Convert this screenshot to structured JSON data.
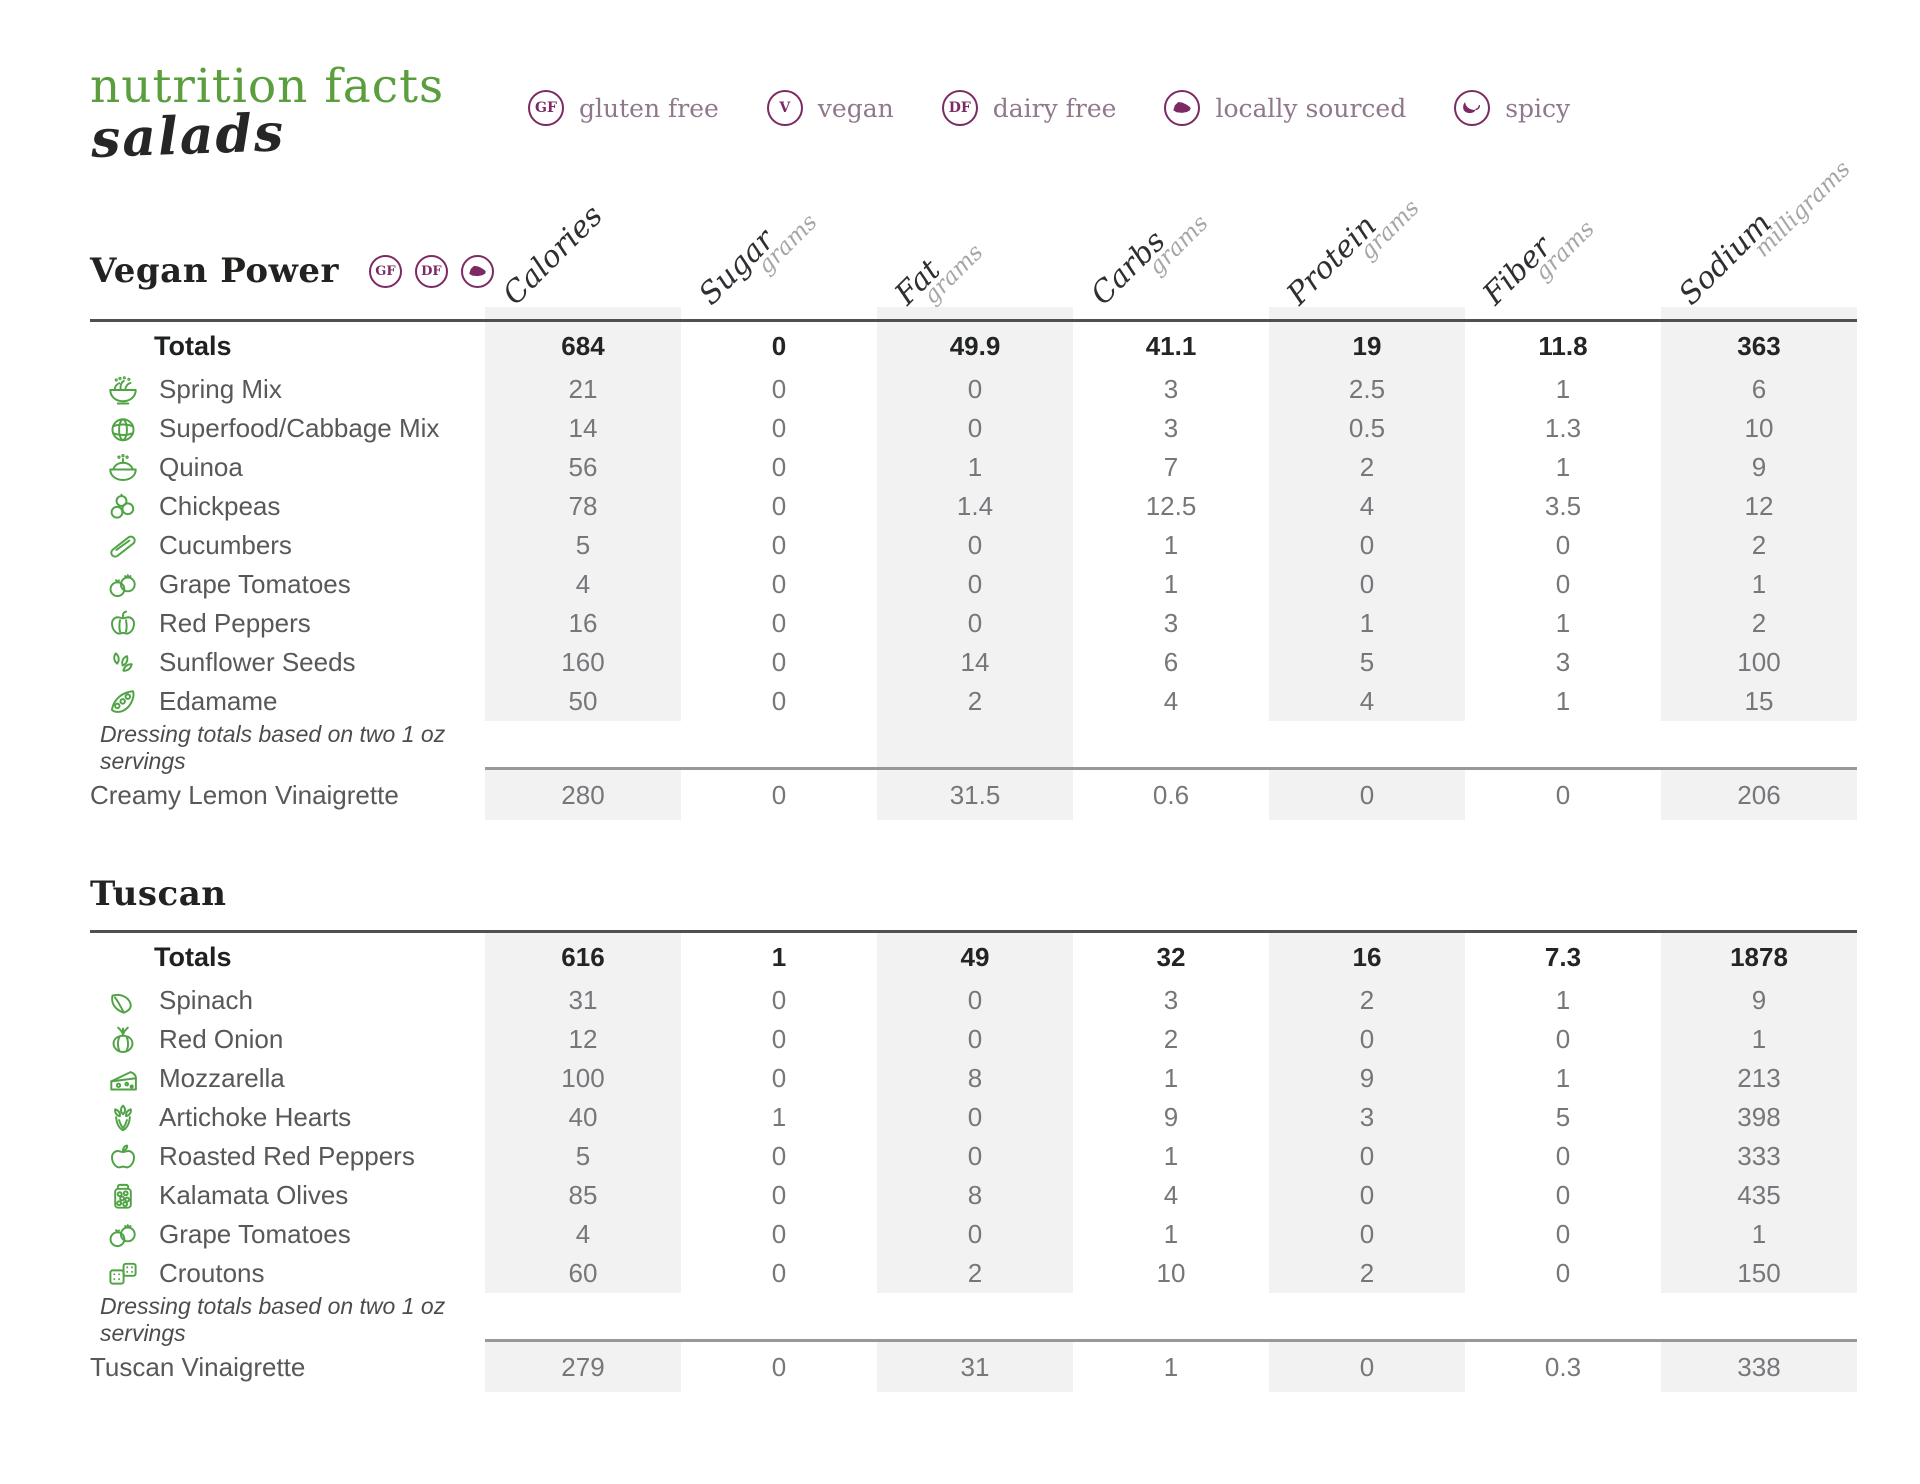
{
  "header": {
    "title": "nutrition facts",
    "subtitle": "salads"
  },
  "legend": {
    "items": [
      {
        "symbol": "GF",
        "icon": "gluten-free-badge",
        "label": "gluten free"
      },
      {
        "symbol": "V",
        "icon": "vegan-badge",
        "label": "vegan"
      },
      {
        "symbol": "DF",
        "icon": "dairy-free-badge",
        "label": "dairy free"
      },
      {
        "symbol": "",
        "icon": "state-icon",
        "label": "locally sourced"
      },
      {
        "symbol": "",
        "icon": "chili-pepper-icon",
        "label": "spicy"
      }
    ]
  },
  "columns": [
    {
      "label": "Calories",
      "unit": "",
      "shaded": true
    },
    {
      "label": "Sugar",
      "unit": "grams",
      "shaded": false
    },
    {
      "label": "Fat",
      "unit": "grams",
      "shaded": true
    },
    {
      "label": "Carbs",
      "unit": "grams",
      "shaded": false
    },
    {
      "label": "Protein",
      "unit": "grams",
      "shaded": true
    },
    {
      "label": "Fiber",
      "unit": "grams",
      "shaded": false
    },
    {
      "label": "Sodium",
      "unit": "milligrams",
      "shaded": true
    }
  ],
  "sections": [
    {
      "name": "Vegan Power",
      "badges": [
        "GF",
        "DF",
        "local"
      ],
      "prerow": true,
      "fat_bridge": true,
      "totals": {
        "label": "Totals",
        "values": [
          "684",
          "0",
          "49.9",
          "41.1",
          "19",
          "11.8",
          "363"
        ]
      },
      "rows": [
        {
          "icon": "spring-mix",
          "label": "Spring Mix",
          "values": [
            "21",
            "0",
            "0",
            "3",
            "2.5",
            "1",
            "6"
          ]
        },
        {
          "icon": "cabbage",
          "label": "Superfood/Cabbage Mix",
          "values": [
            "14",
            "0",
            "0",
            "3",
            "0.5",
            "1.3",
            "10"
          ]
        },
        {
          "icon": "quinoa",
          "label": "Quinoa",
          "values": [
            "56",
            "0",
            "1",
            "7",
            "2",
            "1",
            "9"
          ]
        },
        {
          "icon": "chickpeas",
          "label": "Chickpeas",
          "values": [
            "78",
            "0",
            "1.4",
            "12.5",
            "4",
            "3.5",
            "12"
          ]
        },
        {
          "icon": "cucumber",
          "label": "Cucumbers",
          "values": [
            "5",
            "0",
            "0",
            "1",
            "0",
            "0",
            "2"
          ]
        },
        {
          "icon": "grape-tomatoes",
          "label": "Grape Tomatoes",
          "values": [
            "4",
            "0",
            "0",
            "1",
            "0",
            "0",
            "1"
          ]
        },
        {
          "icon": "red-pepper",
          "label": "Red Peppers",
          "values": [
            "16",
            "0",
            "0",
            "3",
            "1",
            "1",
            "2"
          ]
        },
        {
          "icon": "sunflower-seeds",
          "label": "Sunflower Seeds",
          "values": [
            "160",
            "0",
            "14",
            "6",
            "5",
            "3",
            "100"
          ]
        },
        {
          "icon": "edamame",
          "label": "Edamame",
          "values": [
            "50",
            "0",
            "2",
            "4",
            "4",
            "1",
            "15"
          ]
        }
      ],
      "note": "Dressing totals based on two 1 oz servings",
      "dressing": {
        "label": "Creamy Lemon Vinaigrette",
        "values": [
          "280",
          "0",
          "31.5",
          "0.6",
          "0",
          "0",
          "206"
        ]
      }
    },
    {
      "name": "Tuscan",
      "badges": [],
      "prerow": false,
      "fat_bridge": false,
      "totals": {
        "label": "Totals",
        "values": [
          "616",
          "1",
          "49",
          "32",
          "16",
          "7.3",
          "1878"
        ]
      },
      "rows": [
        {
          "icon": "spinach",
          "label": "Spinach",
          "values": [
            "31",
            "0",
            "0",
            "3",
            "2",
            "1",
            "9"
          ]
        },
        {
          "icon": "red-onion",
          "label": "Red Onion",
          "values": [
            "12",
            "0",
            "0",
            "2",
            "0",
            "0",
            "1"
          ]
        },
        {
          "icon": "mozzarella",
          "label": "Mozzarella",
          "values": [
            "100",
            "0",
            "8",
            "1",
            "9",
            "1",
            "213"
          ]
        },
        {
          "icon": "artichoke",
          "label": "Artichoke Hearts",
          "values": [
            "40",
            "1",
            "0",
            "9",
            "3",
            "5",
            "398"
          ]
        },
        {
          "icon": "roasted-pepper",
          "label": "Roasted Red Peppers",
          "values": [
            "5",
            "0",
            "0",
            "1",
            "0",
            "0",
            "333"
          ]
        },
        {
          "icon": "kalamata-olives",
          "label": "Kalamata Olives",
          "values": [
            "85",
            "0",
            "8",
            "4",
            "0",
            "0",
            "435"
          ]
        },
        {
          "icon": "grape-tomatoes",
          "label": "Grape Tomatoes",
          "values": [
            "4",
            "0",
            "0",
            "1",
            "0",
            "0",
            "1"
          ]
        },
        {
          "icon": "croutons",
          "label": "Croutons",
          "values": [
            "60",
            "0",
            "2",
            "10",
            "2",
            "0",
            "150"
          ]
        }
      ],
      "note": "Dressing totals based on two 1 oz servings",
      "dressing": {
        "label": "Tuscan Vinaigrette",
        "values": [
          "279",
          "0",
          "31",
          "1",
          "0",
          "0.3",
          "338"
        ]
      }
    }
  ],
  "colors": {
    "accent_green": "#5b9e3e",
    "badge_plum": "#7c2a63",
    "shaded_column": "#f2f2f2"
  }
}
